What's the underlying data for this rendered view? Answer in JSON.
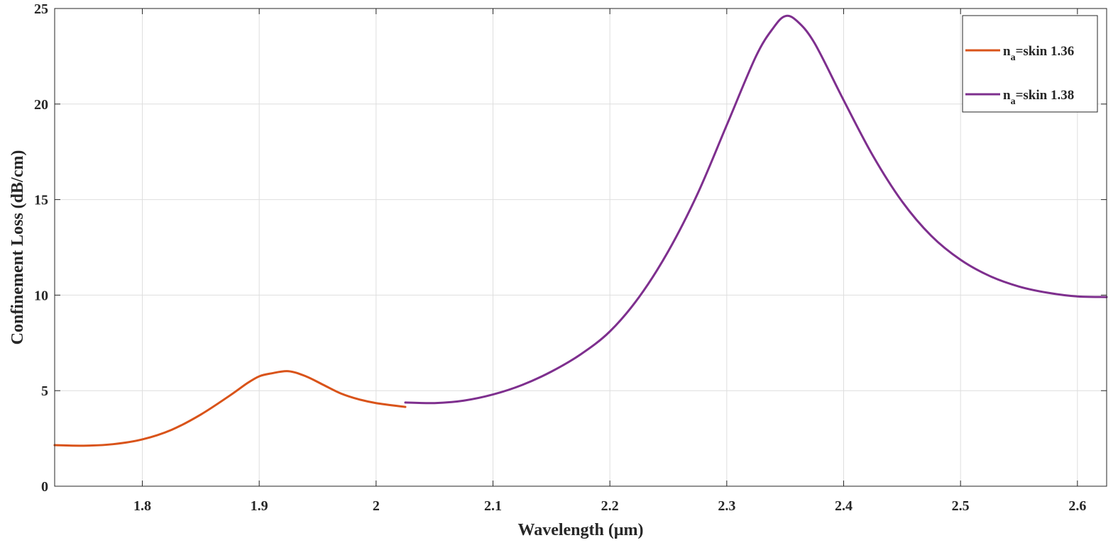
{
  "chart_data": {
    "type": "line",
    "title": "",
    "xlabel": "Wavelength (μm)",
    "ylabel": "Confinement Loss (dB/cm)",
    "xlim": [
      1.725,
      2.625
    ],
    "ylim": [
      0,
      25
    ],
    "xticks": [
      1.8,
      1.9,
      2.0,
      2.1,
      2.2,
      2.3,
      2.4,
      2.5,
      2.6
    ],
    "xtick_labels": [
      "1.8",
      "1.9",
      "2",
      "2.1",
      "2.2",
      "2.3",
      "2.4",
      "2.5",
      "2.6"
    ],
    "yticks": [
      0,
      5,
      10,
      15,
      20,
      25
    ],
    "ytick_labels": [
      "0",
      "5",
      "10",
      "15",
      "20",
      "25"
    ],
    "grid": true,
    "legend_position": "top-right",
    "series": [
      {
        "legend_main": "n",
        "legend_sub": "a",
        "legend_rest": "=skin 1.36",
        "color": "#D95319",
        "x": [
          1.725,
          1.75,
          1.775,
          1.8,
          1.825,
          1.85,
          1.875,
          1.89,
          1.9,
          1.91,
          1.925,
          1.94,
          1.955,
          1.97,
          1.985,
          2.0,
          2.025
        ],
        "y": [
          2.15,
          2.12,
          2.2,
          2.45,
          2.95,
          3.75,
          4.75,
          5.4,
          5.75,
          5.9,
          6.02,
          5.75,
          5.3,
          4.85,
          4.55,
          4.35,
          4.15
        ]
      },
      {
        "legend_main": "n",
        "legend_sub": "a",
        "legend_rest": "=skin 1.38",
        "color": "#7E2F8E",
        "x": [
          2.025,
          2.05,
          2.075,
          2.1,
          2.125,
          2.15,
          2.175,
          2.2,
          2.225,
          2.25,
          2.275,
          2.3,
          2.325,
          2.34,
          2.35,
          2.36,
          2.375,
          2.4,
          2.425,
          2.45,
          2.475,
          2.5,
          2.525,
          2.55,
          2.575,
          2.6,
          2.625
        ],
        "y": [
          4.38,
          4.35,
          4.48,
          4.8,
          5.3,
          6.0,
          6.9,
          8.1,
          9.9,
          12.3,
          15.3,
          18.9,
          22.5,
          24.0,
          24.6,
          24.35,
          23.2,
          20.2,
          17.3,
          14.9,
          13.1,
          11.85,
          11.0,
          10.45,
          10.12,
          9.93,
          9.9
        ]
      }
    ]
  }
}
